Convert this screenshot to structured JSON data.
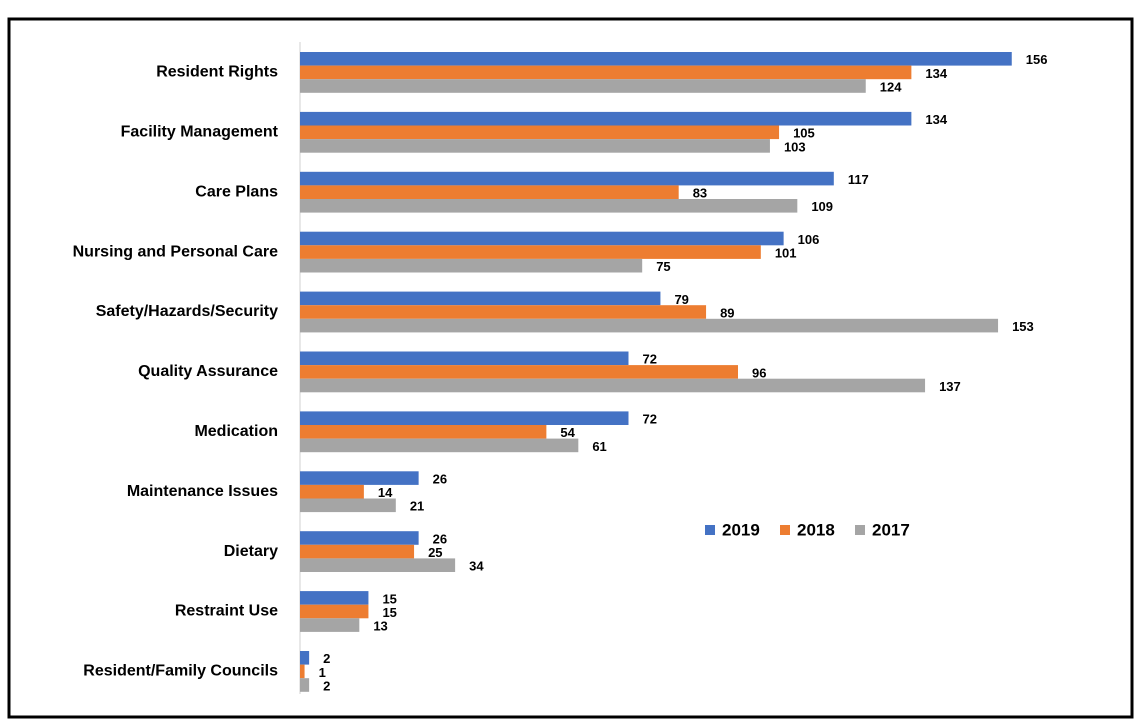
{
  "chart_data": {
    "type": "hbar",
    "categories": [
      "Resident Rights",
      "Facility Management",
      "Care Plans",
      "Nursing and Personal Care",
      "Safety/Hazards/Security",
      "Quality Assurance",
      "Medication",
      "Maintenance Issues",
      "Dietary",
      "Restraint Use",
      "Resident/Family Councils"
    ],
    "series": [
      {
        "name": "2019",
        "color": "#4472c4",
        "values": [
          156,
          134,
          117,
          106,
          79,
          72,
          72,
          26,
          26,
          15,
          2
        ]
      },
      {
        "name": "2018",
        "color": "#ed7d31",
        "values": [
          134,
          105,
          83,
          101,
          89,
          96,
          54,
          14,
          25,
          15,
          1
        ]
      },
      {
        "name": "2017",
        "color": "#a5a5a5",
        "values": [
          124,
          103,
          109,
          75,
          153,
          137,
          61,
          21,
          34,
          13,
          2
        ]
      }
    ],
    "xlim": [
      0,
      160
    ]
  }
}
